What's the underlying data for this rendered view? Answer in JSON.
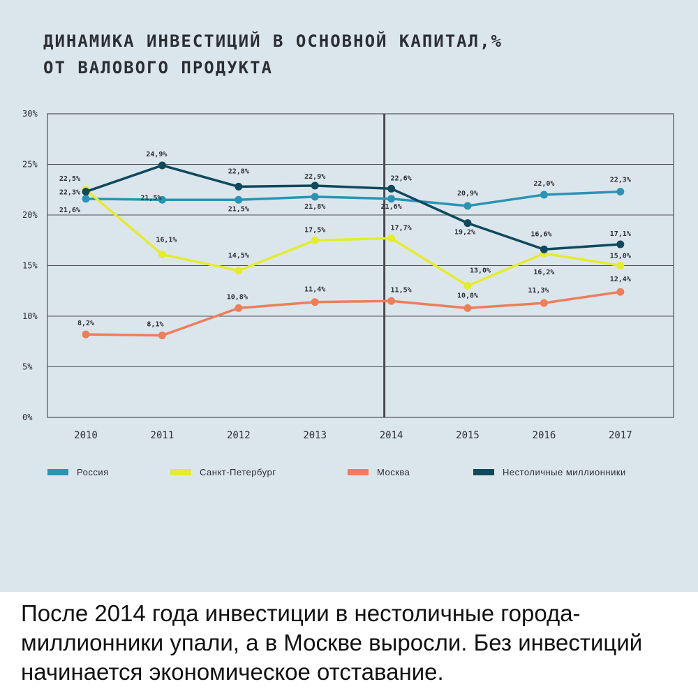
{
  "title_lines": [
    "ДИНАМИКА ИНВЕСТИЦИЙ В ОСНОВНОЙ КАПИТАЛ,%",
    "ОТ ВАЛОВОГО ПРОДУКТА"
  ],
  "caption": "После 2014 года инвестиции в нестоличные города-миллионники упали, а в Москве выросли. Без инвестиций начинается экономическое отставание.",
  "chart_data": {
    "type": "line",
    "categories": [
      "2010",
      "2011",
      "2012",
      "2013",
      "2014",
      "2015",
      "2016",
      "2017"
    ],
    "ylim": [
      0,
      30
    ],
    "y_ticks": [
      0,
      5,
      10,
      15,
      20,
      25,
      30
    ],
    "y_tick_labels": [
      "0%",
      "5%",
      "10%",
      "15%",
      "20%",
      "25%",
      "30%"
    ],
    "grid": true,
    "highlight_category": "2014",
    "legend_position": "bottom",
    "series": [
      {
        "name": "Россия",
        "color": "#2b93b3",
        "values": [
          21.6,
          21.5,
          21.5,
          21.8,
          21.6,
          20.9,
          22.0,
          22.3
        ],
        "labels": [
          "21,6%",
          "21,5%",
          "21,5%",
          "21,8%",
          "21,6%",
          "20,9%",
          "22,0%",
          "22,3%"
        ]
      },
      {
        "name": "Санкт-Петербург",
        "color": "#e4ec2b",
        "values": [
          22.5,
          16.1,
          14.5,
          17.5,
          17.7,
          13.0,
          16.2,
          15.0
        ],
        "labels": [
          "22,5%",
          "16,1%",
          "14,5%",
          "17,5%",
          "17,7%",
          "13,0%",
          "16,2%",
          "15,0%"
        ]
      },
      {
        "name": "Москва",
        "color": "#ee7d5a",
        "values": [
          8.2,
          8.1,
          10.8,
          11.4,
          11.5,
          10.8,
          11.3,
          12.4
        ],
        "labels": [
          "8,2%",
          "8,1%",
          "10,8%",
          "11,4%",
          "11,5%",
          "10,8%",
          "11,3%",
          "12,4%"
        ]
      },
      {
        "name": "Нестоличные миллионники",
        "color": "#10495c",
        "values": [
          22.3,
          24.9,
          22.8,
          22.9,
          22.6,
          19.2,
          16.6,
          17.1
        ],
        "labels": [
          "22,3%",
          "24,9%",
          "22,8%",
          "22,9%",
          "22,6%",
          "19,2%",
          "16,6%",
          "17,1%"
        ]
      }
    ]
  }
}
